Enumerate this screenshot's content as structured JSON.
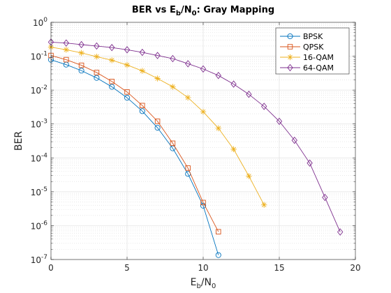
{
  "chart_data": {
    "type": "line",
    "title": {
      "prefix": "BER vs E",
      "sub1": "b",
      "mid": "/N",
      "sub2": "0",
      "suffix": ": Gray Mapping"
    },
    "xlabel": {
      "main": "E",
      "sub1": "b",
      "mid": "/N",
      "sub2": "0"
    },
    "ylabel": "BER",
    "x_ticks": [
      0,
      5,
      10,
      15,
      20
    ],
    "y_tick_exponents": [
      0,
      -1,
      -2,
      -3,
      -4,
      -5,
      -6,
      -7
    ],
    "y_tick_base": "10",
    "xlim": [
      0,
      20
    ],
    "ylim": [
      1e-07,
      1
    ],
    "yscale": "log",
    "grid": true,
    "minor_grid": true,
    "legend_position": "top-right",
    "series": [
      {
        "name": "BPSK",
        "color": "#0072BD",
        "marker": "circle",
        "x": [
          0,
          1,
          2,
          3,
          4,
          5,
          6,
          7,
          8,
          9,
          10,
          11
        ],
        "y": [
          0.0786,
          0.0563,
          0.0375,
          0.0229,
          0.0125,
          0.00595,
          0.00239,
          0.000773,
          0.000191,
          3.36e-05,
          3.87e-06,
          1.35e-07
        ]
      },
      {
        "name": "QPSK",
        "color": "#D95319",
        "marker": "square",
        "x": [
          0,
          1,
          2,
          3,
          4,
          5,
          6,
          7,
          8,
          9,
          10,
          11
        ],
        "y": [
          0.105,
          0.079,
          0.054,
          0.033,
          0.018,
          0.0088,
          0.0035,
          0.0012,
          0.00027,
          5e-05,
          4.8e-06,
          6.6e-07
        ]
      },
      {
        "name": "16-QAM",
        "color": "#EDB120",
        "marker": "star",
        "x": [
          0,
          1,
          2,
          3,
          4,
          5,
          6,
          7,
          8,
          9,
          10,
          11,
          12,
          13,
          14
        ],
        "y": [
          0.185,
          0.155,
          0.125,
          0.097,
          0.076,
          0.055,
          0.037,
          0.022,
          0.0125,
          0.006,
          0.0023,
          0.00075,
          0.00018,
          2.9e-05,
          4.1e-06
        ]
      },
      {
        "name": "64-QAM",
        "color": "#7E2F8E",
        "marker": "diamond",
        "x": [
          0,
          1,
          2,
          3,
          4,
          5,
          6,
          7,
          8,
          9,
          10,
          11,
          12,
          13,
          14,
          15,
          16,
          17,
          18,
          19
        ],
        "y": [
          0.26,
          0.245,
          0.22,
          0.2,
          0.18,
          0.155,
          0.13,
          0.105,
          0.085,
          0.06,
          0.042,
          0.027,
          0.015,
          0.0075,
          0.0033,
          0.0012,
          0.00033,
          7e-05,
          6.8e-06,
          6.5e-07
        ]
      }
    ]
  }
}
